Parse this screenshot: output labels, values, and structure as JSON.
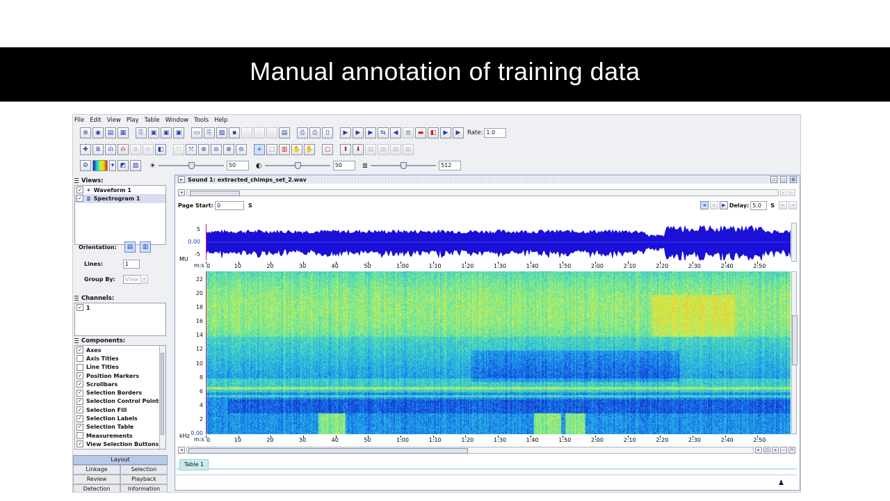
{
  "slide": {
    "title": "Manual annotation of training data"
  },
  "menu": [
    "File",
    "Edit",
    "View",
    "Play",
    "Table",
    "Window",
    "Tools",
    "Help"
  ],
  "toolbar": {
    "rate_label": "Rate:",
    "rate_value": "1.0"
  },
  "sliders": [
    {
      "icon": "brightness-icon",
      "value": "50",
      "level": 0.5
    },
    {
      "icon": "contrast-icon",
      "value": "50",
      "level": 0.5
    },
    {
      "icon": "fft-size-icon",
      "value": "512",
      "level": 0.5
    }
  ],
  "views": {
    "header": "Views:",
    "items": [
      {
        "label": "Waveform 1",
        "checked": true,
        "icon": "waveform-icon"
      },
      {
        "label": "Spectrogram 1",
        "checked": true,
        "icon": "spectrogram-icon"
      }
    ],
    "orientation_label": "Orientation:",
    "lines_label": "Lines:",
    "lines_value": "1",
    "group_by_label": "Group By:",
    "group_by_value": "View"
  },
  "channels": {
    "header": "Channels:",
    "items": [
      {
        "label": "1",
        "checked": true
      }
    ]
  },
  "components": {
    "header": "Components:",
    "items": [
      {
        "label": "Axes",
        "checked": true
      },
      {
        "label": "Axis Titles",
        "checked": false
      },
      {
        "label": "Line Titles",
        "checked": false
      },
      {
        "label": "Position Markers",
        "checked": true
      },
      {
        "label": "Scrollbars",
        "checked": true
      },
      {
        "label": "Selection Borders",
        "checked": true
      },
      {
        "label": "Selection Control Points",
        "checked": true
      },
      {
        "label": "Selection Fill",
        "checked": true
      },
      {
        "label": "Selection Labels",
        "checked": true
      },
      {
        "label": "Selection Table",
        "checked": true
      },
      {
        "label": "Measurements",
        "checked": false
      },
      {
        "label": "View Selection Buttons",
        "checked": true
      }
    ]
  },
  "bottom_tabs": {
    "layout": "Layout",
    "rows": [
      [
        "Linkage",
        "Selection"
      ],
      [
        "Review",
        "Playback"
      ],
      [
        "Detection",
        "Information"
      ]
    ]
  },
  "sound_window": {
    "title": "Sound 1: extracted_chimps_set_2.wav",
    "page_start_label": "Page Start:",
    "page_start_value": "0",
    "page_start_unit": "S",
    "delay_label": "Delay:",
    "delay_value": "5.0",
    "delay_unit": "S",
    "table_tab": "Table 1"
  },
  "waveform": {
    "y_ticks": [
      "5",
      "0.00",
      "-5"
    ],
    "y_unit": "MU"
  },
  "spectrogram": {
    "y_ticks": [
      "22",
      "20",
      "18",
      "16",
      "14",
      "12",
      "10",
      "8",
      "6",
      "4",
      "2",
      "0.00"
    ],
    "y_unit": "kHz"
  },
  "time_axis": {
    "unit": "m:s",
    "ticks": [
      "0",
      "10",
      "20",
      "30",
      "40",
      "50",
      "1:00",
      "1:10",
      "1:20",
      "1:30",
      "1:40",
      "1:50",
      "2:00",
      "2:10",
      "2:20",
      "2:30",
      "2:40",
      "2:50"
    ]
  }
}
